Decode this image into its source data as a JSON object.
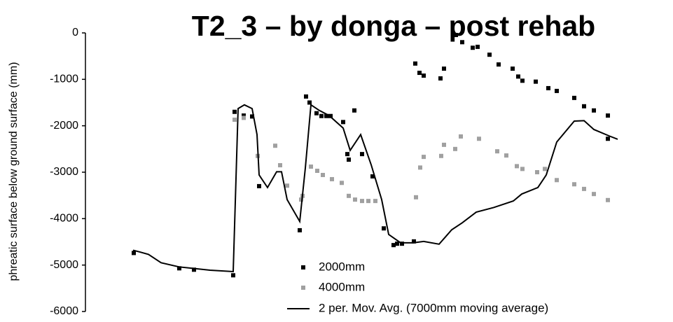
{
  "chart_data": {
    "type": "scatter",
    "title": "T2_3 – by donga – post rehab",
    "y_label": "phreatic surface below ground surface (mm)",
    "xlim": [
      0,
      800
    ],
    "ylim": [
      -6000,
      0
    ],
    "yticks": [
      0,
      -1000,
      -2000,
      -3000,
      -4000,
      -5000,
      -6000
    ],
    "legend": "bottom",
    "series": [
      {
        "name": "2000mm",
        "color": "#000000",
        "style": "markers",
        "x": [
          69,
          134,
          155,
          211,
          213,
          226,
          238,
          248,
          306,
          315,
          320,
          330,
          337,
          344,
          350,
          368,
          374,
          376,
          384,
          395,
          410,
          426,
          440,
          445,
          452,
          469,
          471,
          477,
          483,
          507,
          512,
          529,
          538,
          553,
          560,
          577,
          590,
          610,
          618,
          624,
          643,
          661,
          673,
          698,
          712,
          726,
          746,
          746
        ],
        "values": [
          -4740,
          -5070,
          -5100,
          -5220,
          -1700,
          -1780,
          -1800,
          -3300,
          -4250,
          -1370,
          -1500,
          -1730,
          -1790,
          -1790,
          -1790,
          -1920,
          -2610,
          -2730,
          -1670,
          -2610,
          -3090,
          -4210,
          -4570,
          -4540,
          -4540,
          -4490,
          -660,
          -860,
          -920,
          -980,
          -770,
          -45,
          -200,
          -320,
          -300,
          -470,
          -680,
          -770,
          -940,
          -1030,
          -1050,
          -1190,
          -1250,
          -1400,
          -1580,
          -1670,
          -1780,
          -2280
        ]
      },
      {
        "name": "4000mm",
        "color": "#a0a0a0",
        "style": "markers",
        "x": [
          213,
          226,
          246,
          271,
          278,
          288,
          308,
          310,
          322,
          331,
          339,
          352,
          366,
          376,
          385,
          395,
          404,
          414,
          472,
          478,
          483,
          508,
          512,
          528,
          536,
          562,
          588,
          601,
          616,
          624,
          645,
          656,
          673,
          698,
          712,
          726,
          746
        ],
        "values": [
          -1870,
          -1830,
          -2650,
          -2430,
          -2850,
          -3290,
          -3590,
          -3510,
          -2880,
          -2970,
          -3060,
          -3150,
          -3230,
          -3510,
          -3590,
          -3620,
          -3620,
          -3620,
          -3540,
          -2900,
          -2670,
          -2650,
          -2410,
          -2500,
          -2230,
          -2280,
          -2550,
          -2640,
          -2870,
          -2930,
          -3000,
          -2930,
          -3170,
          -3260,
          -3360,
          -3470,
          -3600
        ]
      },
      {
        "name": "2 per. Mov. Avg. (7000mm moving average)",
        "color": "#000000",
        "style": "line",
        "x": [
          68,
          78,
          90,
          108,
          134,
          178,
          211,
          218,
          227,
          238,
          245,
          248,
          260,
          273,
          280,
          288,
          306,
          314,
          322,
          334,
          348,
          368,
          378,
          393,
          408,
          423,
          433,
          450,
          468,
          483,
          505,
          523,
          538,
          558,
          583,
          611,
          623,
          646,
          658,
          673,
          698,
          712,
          726,
          748,
          760
        ],
        "values": [
          -4680,
          -4720,
          -4770,
          -4950,
          -5040,
          -5110,
          -5140,
          -1630,
          -1550,
          -1630,
          -2190,
          -3060,
          -3330,
          -2990,
          -2990,
          -3590,
          -4060,
          -2910,
          -1550,
          -1670,
          -1780,
          -2050,
          -2530,
          -2190,
          -2840,
          -3590,
          -4340,
          -4520,
          -4520,
          -4490,
          -4550,
          -4240,
          -4090,
          -3860,
          -3760,
          -3620,
          -3470,
          -3330,
          -3060,
          -2350,
          -1900,
          -1890,
          -2080,
          -2220,
          -2290
        ]
      }
    ]
  }
}
